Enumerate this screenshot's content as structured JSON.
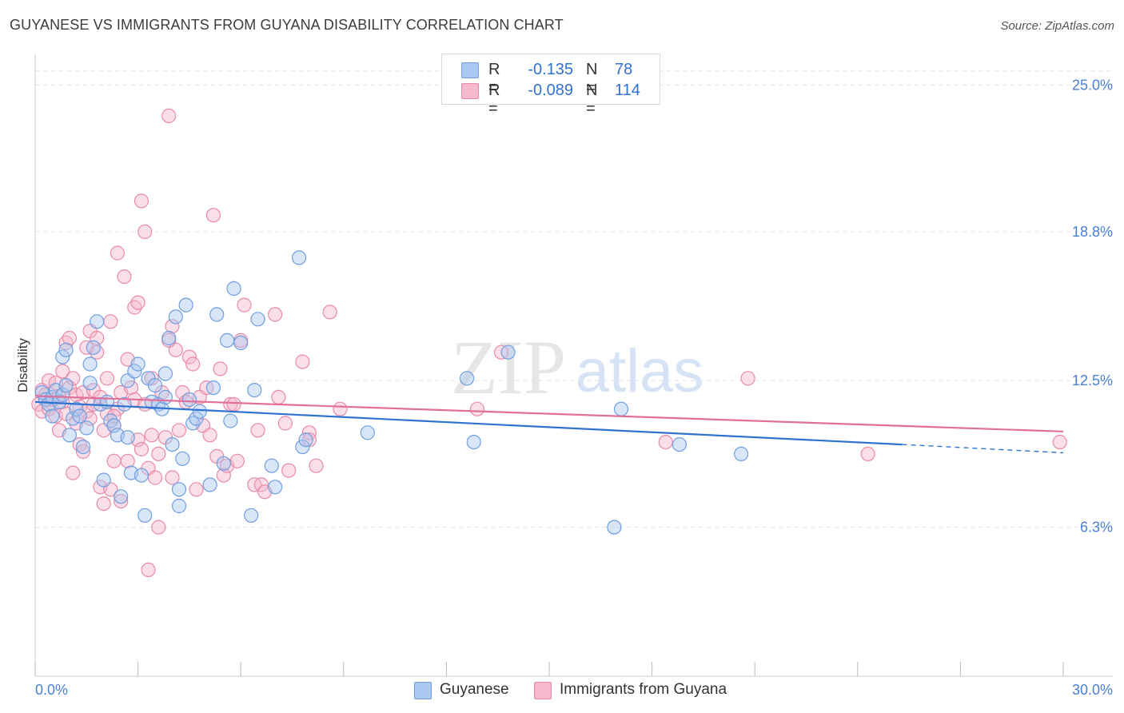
{
  "header": {
    "title": "GUYANESE VS IMMIGRANTS FROM GUYANA DISABILITY CORRELATION CHART",
    "source": "Source: ZipAtlas.com"
  },
  "watermark": {
    "zip": "ZIP",
    "atlas": "atlas"
  },
  "stats": [
    {
      "r_label": "R =",
      "r_value": "-0.135",
      "n_label": "N =",
      "n_value": "78"
    },
    {
      "r_label": "R =",
      "r_value": "-0.089",
      "n_label": "N =",
      "n_value": "114"
    }
  ],
  "legend": {
    "items": [
      "Guyanese",
      "Immigrants from Guyana"
    ]
  },
  "colors": {
    "blue_fill": "#aac8f0",
    "blue_stroke": "#6f9ee0",
    "blue_line": "#2f73d0",
    "pink_fill": "#f5b8cc",
    "pink_stroke": "#e88aa8",
    "pink_line": "#e0709a",
    "tick_label": "#4a7fd4",
    "grid": "#e3e3e3"
  },
  "chart_data": {
    "type": "scatter",
    "title": "GUYANESE VS IMMIGRANTS FROM GUYANA DISABILITY CORRELATION CHART",
    "xlabel": "",
    "ylabel": "Disability",
    "xlim": [
      0,
      30
    ],
    "ylim": [
      0,
      26.3
    ],
    "x_tick_labels": [
      "0.0%",
      "30.0%"
    ],
    "y_ticks": [
      6.3,
      12.5,
      18.8,
      25.0
    ],
    "y_tick_labels": [
      "6.3%",
      "12.5%",
      "18.8%",
      "25.0%"
    ],
    "grid": "horizontal dashed",
    "legend_position": "bottom",
    "series": [
      {
        "name": "Guyanese",
        "color": "#aac8f0",
        "trend": {
          "x0": 0,
          "y0": 11.6,
          "x1": 25.3,
          "y1": 9.8,
          "dash_to_x": 30,
          "dash_to_y": 9.45
        },
        "points": [
          [
            0.2,
            12.0
          ],
          [
            0.3,
            11.7
          ],
          [
            0.4,
            11.5
          ],
          [
            0.5,
            11.8
          ],
          [
            0.5,
            11.0
          ],
          [
            0.6,
            12.1
          ],
          [
            0.7,
            11.6
          ],
          [
            0.8,
            11.9
          ],
          [
            0.8,
            13.5
          ],
          [
            0.9,
            13.8
          ],
          [
            1.0,
            10.2
          ],
          [
            1.1,
            10.9
          ],
          [
            1.2,
            11.3
          ],
          [
            1.3,
            11.0
          ],
          [
            1.4,
            9.7
          ],
          [
            1.5,
            10.5
          ],
          [
            1.6,
            12.4
          ],
          [
            1.6,
            13.2
          ],
          [
            1.7,
            13.9
          ],
          [
            1.8,
            15.0
          ],
          [
            1.9,
            11.5
          ],
          [
            2.0,
            8.3
          ],
          [
            2.1,
            11.6
          ],
          [
            2.2,
            10.8
          ],
          [
            2.3,
            10.6
          ],
          [
            2.4,
            10.2
          ],
          [
            2.5,
            7.6
          ],
          [
            2.6,
            11.5
          ],
          [
            2.7,
            12.5
          ],
          [
            2.8,
            8.6
          ],
          [
            2.9,
            12.9
          ],
          [
            3.0,
            13.2
          ],
          [
            3.1,
            8.5
          ],
          [
            3.2,
            6.8
          ],
          [
            3.3,
            12.6
          ],
          [
            3.4,
            11.6
          ],
          [
            3.5,
            12.3
          ],
          [
            3.6,
            11.5
          ],
          [
            3.7,
            11.3
          ],
          [
            3.8,
            11.8
          ],
          [
            3.9,
            14.3
          ],
          [
            4.0,
            9.8
          ],
          [
            4.1,
            15.2
          ],
          [
            4.2,
            7.9
          ],
          [
            4.2,
            7.2
          ],
          [
            4.3,
            9.2
          ],
          [
            4.4,
            15.7
          ],
          [
            4.5,
            11.7
          ],
          [
            4.6,
            10.7
          ],
          [
            4.7,
            10.9
          ],
          [
            4.8,
            11.2
          ],
          [
            5.1,
            8.1
          ],
          [
            5.2,
            12.2
          ],
          [
            5.3,
            15.3
          ],
          [
            5.5,
            9.0
          ],
          [
            5.6,
            14.2
          ],
          [
            5.7,
            10.8
          ],
          [
            5.8,
            16.4
          ],
          [
            6.0,
            14.1
          ],
          [
            6.3,
            6.8
          ],
          [
            6.4,
            12.1
          ],
          [
            6.5,
            15.1
          ],
          [
            6.9,
            8.9
          ],
          [
            7.0,
            8.0
          ],
          [
            7.7,
            17.7
          ],
          [
            7.8,
            9.7
          ],
          [
            7.9,
            10.0
          ],
          [
            9.7,
            10.3
          ],
          [
            12.6,
            12.6
          ],
          [
            12.8,
            9.9
          ],
          [
            13.8,
            13.7
          ],
          [
            16.9,
            6.3
          ],
          [
            17.1,
            11.3
          ],
          [
            18.8,
            9.8
          ],
          [
            20.6,
            9.4
          ],
          [
            0.9,
            12.3
          ],
          [
            2.7,
            10.1
          ],
          [
            3.8,
            12.8
          ]
        ]
      },
      {
        "name": "Immigrants from Guyana",
        "color": "#f5b8cc",
        "trend": {
          "x0": 0,
          "y0": 11.85,
          "x1": 30,
          "y1": 10.35
        },
        "points": [
          [
            0.1,
            11.5
          ],
          [
            0.2,
            12.1
          ],
          [
            0.2,
            11.2
          ],
          [
            0.3,
            11.9
          ],
          [
            0.4,
            11.3
          ],
          [
            0.4,
            12.5
          ],
          [
            0.5,
            11.7
          ],
          [
            0.6,
            12.4
          ],
          [
            0.6,
            11.0
          ],
          [
            0.7,
            11.8
          ],
          [
            0.7,
            10.4
          ],
          [
            0.8,
            12.9
          ],
          [
            0.8,
            11.6
          ],
          [
            0.9,
            14.1
          ],
          [
            0.9,
            11.1
          ],
          [
            1.0,
            12.2
          ],
          [
            1.0,
            14.3
          ],
          [
            1.1,
            8.6
          ],
          [
            1.1,
            12.6
          ],
          [
            1.2,
            11.9
          ],
          [
            1.2,
            10.7
          ],
          [
            1.3,
            9.8
          ],
          [
            1.3,
            11.4
          ],
          [
            1.4,
            12.0
          ],
          [
            1.4,
            9.5
          ],
          [
            1.5,
            13.9
          ],
          [
            1.5,
            11.2
          ],
          [
            1.6,
            14.6
          ],
          [
            1.6,
            10.9
          ],
          [
            1.7,
            12.1
          ],
          [
            1.7,
            11.5
          ],
          [
            1.8,
            14.3
          ],
          [
            1.8,
            13.7
          ],
          [
            1.9,
            8.0
          ],
          [
            1.9,
            11.8
          ],
          [
            2.0,
            7.3
          ],
          [
            2.0,
            10.4
          ],
          [
            2.1,
            12.6
          ],
          [
            2.1,
            11.1
          ],
          [
            2.2,
            15.0
          ],
          [
            2.2,
            7.9
          ],
          [
            2.3,
            10.6
          ],
          [
            2.3,
            9.1
          ],
          [
            2.4,
            11.3
          ],
          [
            2.4,
            17.9
          ],
          [
            2.5,
            7.4
          ],
          [
            2.5,
            12.0
          ],
          [
            2.6,
            16.9
          ],
          [
            2.7,
            9.1
          ],
          [
            2.7,
            13.4
          ],
          [
            2.8,
            12.2
          ],
          [
            2.9,
            15.6
          ],
          [
            2.9,
            11.7
          ],
          [
            3.0,
            15.8
          ],
          [
            3.0,
            10.0
          ],
          [
            3.1,
            9.6
          ],
          [
            3.1,
            20.1
          ],
          [
            3.2,
            18.8
          ],
          [
            3.2,
            11.5
          ],
          [
            3.3,
            4.5
          ],
          [
            3.3,
            8.8
          ],
          [
            3.4,
            12.6
          ],
          [
            3.4,
            10.2
          ],
          [
            3.5,
            8.4
          ],
          [
            3.6,
            9.4
          ],
          [
            3.6,
            6.3
          ],
          [
            3.7,
            12.0
          ],
          [
            3.8,
            10.1
          ],
          [
            3.9,
            23.7
          ],
          [
            4.0,
            14.8
          ],
          [
            4.0,
            8.4
          ],
          [
            4.1,
            13.8
          ],
          [
            4.2,
            10.4
          ],
          [
            4.3,
            12.0
          ],
          [
            4.4,
            11.6
          ],
          [
            4.5,
            13.5
          ],
          [
            4.6,
            13.2
          ],
          [
            4.7,
            7.9
          ],
          [
            4.8,
            11.8
          ],
          [
            4.9,
            10.6
          ],
          [
            5.0,
            12.2
          ],
          [
            5.1,
            10.2
          ],
          [
            5.2,
            19.5
          ],
          [
            5.3,
            9.3
          ],
          [
            5.4,
            13.0
          ],
          [
            5.5,
            8.5
          ],
          [
            5.6,
            8.9
          ],
          [
            5.7,
            11.5
          ],
          [
            5.9,
            9.1
          ],
          [
            6.0,
            14.2
          ],
          [
            6.1,
            15.7
          ],
          [
            6.4,
            8.1
          ],
          [
            6.5,
            10.4
          ],
          [
            6.6,
            8.1
          ],
          [
            6.7,
            7.8
          ],
          [
            7.0,
            15.3
          ],
          [
            7.1,
            11.8
          ],
          [
            7.3,
            10.7
          ],
          [
            7.4,
            8.7
          ],
          [
            7.8,
            13.3
          ],
          [
            8.0,
            10.3
          ],
          [
            8.0,
            10.0
          ],
          [
            8.2,
            8.9
          ],
          [
            8.6,
            15.4
          ],
          [
            8.9,
            11.3
          ],
          [
            12.9,
            11.3
          ],
          [
            13.6,
            13.7
          ],
          [
            18.4,
            9.9
          ],
          [
            20.8,
            12.6
          ],
          [
            24.3,
            9.4
          ],
          [
            29.9,
            9.9
          ],
          [
            3.9,
            14.2
          ],
          [
            2.3,
            11.0
          ],
          [
            5.8,
            11.5
          ]
        ]
      }
    ]
  }
}
